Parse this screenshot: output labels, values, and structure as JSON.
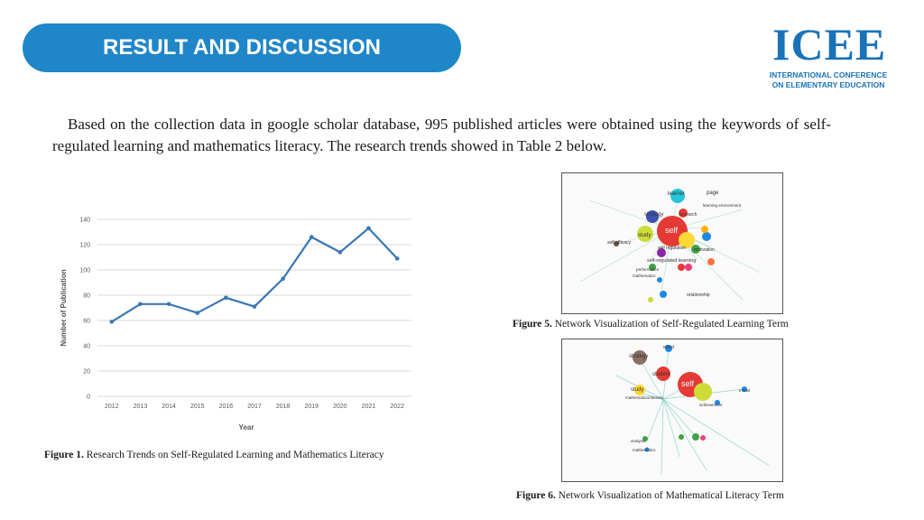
{
  "header": {
    "title": "RESULT AND DISCUSSION"
  },
  "logo": {
    "letters": "ICEE",
    "line1": "INTERNATIONAL CONFERENCE",
    "line2": "ON ELEMENTARY EDUCATION"
  },
  "intro": "Based on the collection data in google scholar database, 995 published articles were obtained using the keywords of self-regulated learning and mathematics literacy. The research trends showed in Table 2 below.",
  "figures": {
    "fig1": {
      "label": "Figure 1.",
      "text": " Research Trends on Self-Regulated Learning and Mathematics Literacy"
    },
    "fig5": {
      "label": "Figure 5.",
      "text": " Network Visualization of Self-Regulated Learning Term"
    },
    "fig6": {
      "label": "Figure 6.",
      "text": " Network Visualization of Mathematical Literacy Term"
    }
  },
  "network5": {
    "nodes": [
      "learner",
      "page",
      "learning environment",
      "strategy",
      "research",
      "self",
      "study",
      "self efficacy",
      "self regulation",
      "motivation",
      "self-regulated learning",
      "performance",
      "mathematics",
      "relationship"
    ]
  },
  "network6": {
    "nodes": [
      "effect",
      "strategy",
      "student",
      "self",
      "study",
      "mathematical literacy",
      "achievement",
      "model",
      "analysis",
      "mathematics"
    ]
  },
  "colors": {
    "header": "#1f86c8",
    "line": "#3b78b3",
    "logo": "#1a73b8"
  },
  "chart_data": {
    "type": "line",
    "x": [
      "2012",
      "2013",
      "2014",
      "2015",
      "2016",
      "2017",
      "2018",
      "2019",
      "2020",
      "2021",
      "2022"
    ],
    "values": [
      59,
      73,
      73,
      66,
      78,
      71,
      93,
      126,
      114,
      133,
      109
    ],
    "yticks": [
      "0",
      "20",
      "40",
      "60",
      "80",
      "100",
      "120",
      "140"
    ],
    "ylim": [
      0,
      140
    ],
    "xlabel": "Year",
    "ylabel": "Number of Publication",
    "title": ""
  }
}
